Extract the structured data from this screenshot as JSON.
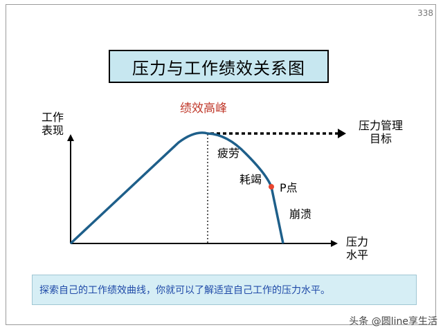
{
  "page_number": "338",
  "title": "压力与工作绩效关系图",
  "y_axis_label": [
    "工作",
    "表现"
  ],
  "x_axis_label": [
    "压力",
    "水平"
  ],
  "peak_label": "绩效高峰",
  "target_label": [
    "压力管理",
    "目标"
  ],
  "stage_labels": {
    "fatigue": "疲劳",
    "exhaustion": "耗竭",
    "p_point": "P点",
    "collapse": "崩溃"
  },
  "caption": "探索自己的工作绩效曲线，你就可以了解适宜自己工作的压力水平。",
  "watermark": "头条 @圆line享生活",
  "colors": {
    "curve": "#1e5f8a",
    "p_point": "#e8452f",
    "peak_label": "#c0392b",
    "title_bg": "#c7e7f0",
    "caption_bg": "#d6eef5",
    "caption_text": "#1f4aa8"
  }
}
